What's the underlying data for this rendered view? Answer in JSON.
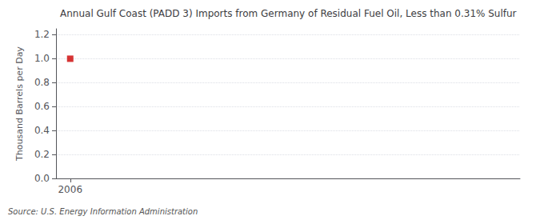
{
  "chart_data": {
    "type": "scatter",
    "title": "Annual Gulf Coast (PADD 3) Imports from Germany of Residual Fuel Oil, Less than 0.31% Sulfur",
    "ylabel": "Thousand Barrels per Day",
    "source": "Source: U.S. Energy Information Administration",
    "x": [
      2006
    ],
    "values": [
      1.0
    ],
    "color": "#cc0000",
    "marker": "square",
    "xlim": [
      2005.4,
      2025
    ],
    "xticks": [
      2006
    ],
    "ylim": [
      0.0,
      1.25
    ],
    "yticks": [
      {
        "value": 0,
        "label": "0.0"
      },
      0.2,
      0.4,
      0.6,
      0.8,
      {
        "value": 1,
        "label": "1.0"
      },
      1.2
    ],
    "grid": true
  }
}
